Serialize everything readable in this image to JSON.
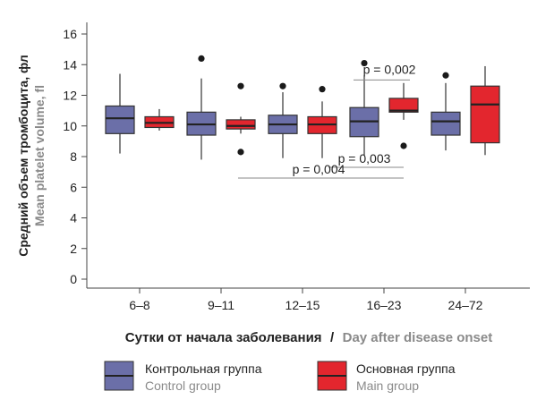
{
  "chart_data": {
    "type": "box",
    "ylabel_ru": "Средний объем тромбоцита, фл",
    "ylabel_en": "Mean platelet volume, fl",
    "xlabel_ru": "Сутки от начала заболевания",
    "xlabel_sep": "/",
    "xlabel_en": "Day after disease onset",
    "ylim": [
      0,
      16
    ],
    "yticks": [
      "0",
      "2",
      "4",
      "6",
      "8",
      "10",
      "12",
      "14",
      "16"
    ],
    "categories": [
      "6–8",
      "9–11",
      "12–15",
      "16–23",
      "24–72"
    ],
    "series": [
      {
        "name_ru": "Контрольная группа",
        "name_en": "Control group",
        "color": "#6b6fa8",
        "boxes": [
          {
            "min": 8.2,
            "q1": 9.5,
            "median": 10.5,
            "q3": 11.3,
            "max": 13.4,
            "outliers": []
          },
          {
            "min": 7.8,
            "q1": 9.4,
            "median": 10.1,
            "q3": 10.9,
            "max": 13.1,
            "outliers": [
              14.4
            ]
          },
          {
            "min": 7.9,
            "q1": 9.5,
            "median": 10.1,
            "q3": 10.7,
            "max": 12.2,
            "outliers": [
              12.6
            ]
          },
          {
            "min": 8.1,
            "q1": 9.3,
            "median": 10.3,
            "q3": 11.2,
            "max": 13.3,
            "outliers": [
              14.1
            ]
          },
          {
            "min": 8.4,
            "q1": 9.4,
            "median": 10.3,
            "q3": 10.9,
            "max": 12.8,
            "outliers": [
              13.3
            ]
          }
        ]
      },
      {
        "name_ru": "Основная группа",
        "name_en": "Main group",
        "color": "#e3262e",
        "boxes": [
          {
            "min": 9.7,
            "q1": 9.9,
            "median": 10.2,
            "q3": 10.6,
            "max": 11.1,
            "outliers": []
          },
          {
            "min": 9.5,
            "q1": 9.8,
            "median": 10.0,
            "q3": 10.4,
            "max": 10.6,
            "outliers": [
              12.6,
              8.3
            ]
          },
          {
            "min": 7.9,
            "q1": 9.5,
            "median": 10.1,
            "q3": 10.6,
            "max": 11.6,
            "outliers": [
              12.4
            ]
          },
          {
            "min": 10.4,
            "q1": 10.9,
            "median": 11.0,
            "q3": 11.8,
            "max": 12.8,
            "outliers": [
              8.7
            ]
          },
          {
            "min": 8.1,
            "q1": 8.9,
            "median": 11.4,
            "q3": 12.6,
            "max": 13.9,
            "outliers": []
          }
        ]
      }
    ],
    "annotations": [
      {
        "text": "p = 0,002",
        "from": 3,
        "to": 3,
        "y": 13.0
      },
      {
        "text": "p = 0,003",
        "from": 2,
        "to": 3,
        "y": 7.3
      },
      {
        "text": "p = 0,004",
        "from": 1,
        "to": 3,
        "y": 6.6
      }
    ]
  }
}
